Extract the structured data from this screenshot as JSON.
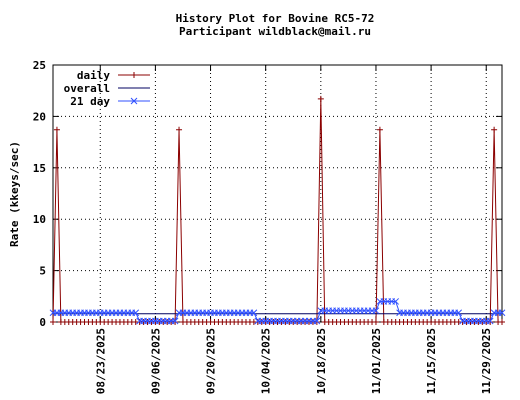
{
  "chart_data": {
    "type": "line",
    "title": "History Plot for Bovine RC5-72",
    "subtitle": "Participant wildblack@mail.ru",
    "y_label": "Rate (kkeys/sec)",
    "x": [
      "08/11/2025",
      "08/12/2025",
      "08/13/2025",
      "08/14/2025",
      "08/15/2025",
      "08/16/2025",
      "08/17/2025",
      "08/18/2025",
      "08/19/2025",
      "08/20/2025",
      "08/21/2025",
      "08/22/2025",
      "08/23/2025",
      "08/24/2025",
      "08/25/2025",
      "08/26/2025",
      "08/27/2025",
      "08/28/2025",
      "08/29/2025",
      "08/30/2025",
      "08/31/2025",
      "09/01/2025",
      "09/02/2025",
      "09/03/2025",
      "09/04/2025",
      "09/05/2025",
      "09/06/2025",
      "09/07/2025",
      "09/08/2025",
      "09/09/2025",
      "09/10/2025",
      "09/11/2025",
      "09/12/2025",
      "09/13/2025",
      "09/14/2025",
      "09/15/2025",
      "09/16/2025",
      "09/17/2025",
      "09/18/2025",
      "09/19/2025",
      "09/20/2025",
      "09/21/2025",
      "09/22/2025",
      "09/23/2025",
      "09/24/2025",
      "09/25/2025",
      "09/26/2025",
      "09/27/2025",
      "09/28/2025",
      "09/29/2025",
      "09/30/2025",
      "10/01/2025",
      "10/02/2025",
      "10/03/2025",
      "10/04/2025",
      "10/05/2025",
      "10/06/2025",
      "10/07/2025",
      "10/08/2025",
      "10/09/2025",
      "10/10/2025",
      "10/11/2025",
      "10/12/2025",
      "10/13/2025",
      "10/14/2025",
      "10/15/2025",
      "10/16/2025",
      "10/17/2025",
      "10/18/2025",
      "10/19/2025",
      "10/20/2025",
      "10/21/2025",
      "10/22/2025",
      "10/23/2025",
      "10/24/2025",
      "10/25/2025",
      "10/26/2025",
      "10/27/2025",
      "10/28/2025",
      "10/29/2025",
      "10/30/2025",
      "10/31/2025",
      "11/01/2025",
      "11/02/2025",
      "11/03/2025",
      "11/04/2025",
      "11/05/2025",
      "11/06/2025",
      "11/07/2025",
      "11/08/2025",
      "11/09/2025",
      "11/10/2025",
      "11/11/2025",
      "11/12/2025",
      "11/13/2025",
      "11/14/2025",
      "11/15/2025",
      "11/16/2025",
      "11/17/2025",
      "11/18/2025",
      "11/19/2025",
      "11/20/2025",
      "11/21/2025",
      "11/22/2025",
      "11/23/2025",
      "11/24/2025",
      "11/25/2025",
      "11/26/2025",
      "11/27/2025",
      "11/28/2025",
      "11/29/2025",
      "11/30/2025",
      "12/01/2025",
      "12/02/2025",
      "12/03/2025"
    ],
    "series": [
      {
        "name": "daily",
        "color": "#8b0000",
        "marker": "plus",
        "values": [
          0,
          18.7,
          0,
          0,
          0,
          0,
          0,
          0,
          0,
          0,
          0,
          0,
          0,
          0,
          0,
          0,
          0,
          0,
          0,
          0,
          0,
          0,
          0,
          0,
          0,
          0,
          0,
          0,
          0,
          0,
          0,
          0,
          18.7,
          0,
          0,
          0,
          0,
          0,
          0,
          0,
          0,
          0,
          0,
          0,
          0,
          0,
          0,
          0,
          0,
          0,
          0,
          0,
          0,
          0,
          0,
          0,
          0,
          0,
          0,
          0,
          0,
          0,
          0,
          0,
          0,
          0,
          0,
          0,
          21.7,
          0,
          0,
          0,
          0,
          0,
          0,
          0,
          0,
          0,
          0,
          0,
          0,
          0,
          0,
          18.7,
          0,
          0,
          0,
          0,
          0,
          0,
          0,
          0,
          0,
          0,
          0,
          0,
          0,
          0,
          0,
          0,
          0,
          0,
          0,
          0,
          0,
          0,
          0,
          0,
          0,
          0,
          0,
          0,
          18.7,
          0,
          0
        ]
      },
      {
        "name": "overall",
        "color": "#000060",
        "marker": "none",
        "values": [
          0.8,
          0.8,
          0.8,
          0.8,
          0.8,
          0.8,
          0.8,
          0.8,
          0.8,
          0.8,
          0.8,
          0.8,
          0.8,
          0.8,
          0.8,
          0.8,
          0.8,
          0.8,
          0.8,
          0.8,
          0.8,
          0.8,
          0.8,
          0.8,
          0.8,
          0.8,
          0.8,
          0.8,
          0.8,
          0.8,
          0.8,
          0.8,
          0.8,
          0.8,
          0.8,
          0.8,
          0.8,
          0.8,
          0.8,
          0.8,
          0.8,
          0.8,
          0.8,
          0.8,
          0.8,
          0.8,
          0.8,
          0.8,
          0.8,
          0.8,
          0.8,
          0.8,
          0.8,
          0.8,
          0.8,
          0.8,
          0.8,
          0.8,
          0.8,
          0.8,
          0.8,
          0.8,
          0.8,
          0.8,
          0.8,
          0.8,
          0.8,
          0.8,
          0.8,
          0.8,
          0.8,
          0.8,
          0.8,
          0.8,
          0.8,
          0.8,
          0.8,
          0.8,
          0.8,
          0.8,
          0.8,
          0.8,
          0.8,
          0.8,
          0.8,
          0.8,
          0.8,
          0.8,
          0.8,
          0.8,
          0.8,
          0.8,
          0.8,
          0.8,
          0.8,
          0.8,
          0.8,
          0.8,
          0.8,
          0.8,
          0.8,
          0.8,
          0.8,
          0.8,
          0.8,
          0.8,
          0.8,
          0.8,
          0.8,
          0.8,
          0.8,
          0.8,
          0.8,
          0.8,
          0.8
        ]
      },
      {
        "name": "21 day",
        "color": "#3050ff",
        "marker": "cross",
        "values": [
          0.9,
          0.9,
          0.9,
          0.9,
          0.9,
          0.9,
          0.9,
          0.9,
          0.9,
          0.9,
          0.9,
          0.9,
          0.9,
          0.9,
          0.9,
          0.9,
          0.9,
          0.9,
          0.9,
          0.9,
          0.9,
          0.9,
          0.1,
          0.1,
          0.1,
          0.1,
          0.1,
          0.1,
          0.1,
          0.1,
          0.1,
          0.1,
          0.9,
          0.9,
          0.9,
          0.9,
          0.9,
          0.9,
          0.9,
          0.9,
          0.9,
          0.9,
          0.9,
          0.9,
          0.9,
          0.9,
          0.9,
          0.9,
          0.9,
          0.9,
          0.9,
          0.9,
          0.1,
          0.1,
          0.1,
          0.1,
          0.1,
          0.1,
          0.1,
          0.1,
          0.1,
          0.1,
          0.1,
          0.1,
          0.1,
          0.1,
          0.1,
          0.1,
          1.1,
          1.1,
          1.1,
          1.1,
          1.1,
          1.1,
          1.1,
          1.1,
          1.1,
          1.1,
          1.1,
          1.1,
          1.1,
          1.1,
          1.1,
          2,
          2,
          2,
          2,
          2,
          0.9,
          0.9,
          0.9,
          0.9,
          0.9,
          0.9,
          0.9,
          0.9,
          0.9,
          0.9,
          0.9,
          0.9,
          0.9,
          0.9,
          0.9,
          0.9,
          0.1,
          0.1,
          0.1,
          0.1,
          0.1,
          0.1,
          0.1,
          0.1,
          0.9,
          0.9,
          0.9
        ]
      }
    ],
    "xlim": [
      "08/11/2025",
      "12/03/2025"
    ],
    "xticks": [
      "08/23/2025",
      "09/06/2025",
      "09/20/2025",
      "10/04/2025",
      "10/18/2025",
      "11/01/2025",
      "11/15/2025",
      "11/29/2025"
    ],
    "ylim": [
      0,
      25
    ],
    "yticks": [
      0,
      5,
      10,
      15,
      20,
      25
    ],
    "grid": true,
    "legend": "top-left"
  }
}
